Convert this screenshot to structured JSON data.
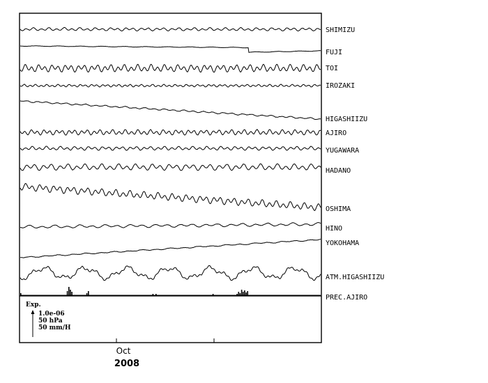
{
  "chart_data": {
    "type": "line",
    "title": "",
    "subtitle": "",
    "xlabel": "",
    "ylabel": "",
    "x_ticks": [
      "Oct"
    ],
    "x_year": "2008",
    "scale_box": {
      "title": "Exp.",
      "lines": [
        "1.0e-06",
        "50 hPa",
        "50 mm/H"
      ]
    },
    "series": [
      {
        "name": "SHIMIZU",
        "kind": "wiggle",
        "amp": 1.5,
        "period": 11,
        "trend": 0
      },
      {
        "name": "FUJI",
        "kind": "step",
        "levels": [
          0,
          2,
          3,
          10,
          9,
          7
        ],
        "step_at": 0.76
      },
      {
        "name": "TOI",
        "kind": "wiggle",
        "amp": 3.5,
        "period": 9.5,
        "trend": 0
      },
      {
        "name": "IROZAKI",
        "kind": "wiggle",
        "amp": 1.2,
        "period": 8,
        "trend": 0
      },
      {
        "name": "HIGASHIIZU",
        "kind": "wiggle",
        "amp": 0.8,
        "period": 14,
        "trend": 26
      },
      {
        "name": "AJIRO",
        "kind": "wiggle",
        "amp": 2.5,
        "period": 9,
        "trend": 0
      },
      {
        "name": "YUGAWARA",
        "kind": "wiggle",
        "amp": 1.8,
        "period": 10,
        "trend": 0
      },
      {
        "name": "HADANO",
        "kind": "wiggle",
        "amp": 3,
        "period": 12,
        "trend": 0
      },
      {
        "name": "OSHIMA",
        "kind": "wiggle",
        "amp": 3.5,
        "period": 10,
        "trend": 30
      },
      {
        "name": "HINO",
        "kind": "wiggle",
        "amp": 1.5,
        "period": 18,
        "trend": -4
      },
      {
        "name": "YOKOHAMA",
        "kind": "wiggle",
        "amp": 0.6,
        "period": 20,
        "trend": -26
      },
      {
        "name": "ATM.HIGASHIIZU",
        "kind": "pressure",
        "amp": 7,
        "period": 60
      },
      {
        "name": "PREC.AJIRO",
        "kind": "bars",
        "events": [
          {
            "x": 0.0,
            "h": 3
          },
          {
            "x": 0.155,
            "h": 6
          },
          {
            "x": 0.16,
            "h": 12
          },
          {
            "x": 0.165,
            "h": 8
          },
          {
            "x": 0.17,
            "h": 5
          },
          {
            "x": 0.22,
            "h": 3
          },
          {
            "x": 0.225,
            "h": 6
          },
          {
            "x": 0.44,
            "h": 2
          },
          {
            "x": 0.45,
            "h": 2
          },
          {
            "x": 0.64,
            "h": 2
          },
          {
            "x": 0.73,
            "h": 3
          },
          {
            "x": 0.72,
            "h": 2
          },
          {
            "x": 0.725,
            "h": 5
          },
          {
            "x": 0.735,
            "h": 8
          },
          {
            "x": 0.74,
            "h": 5
          },
          {
            "x": 0.745,
            "h": 7
          },
          {
            "x": 0.75,
            "h": 4
          },
          {
            "x": 0.755,
            "h": 6
          }
        ]
      }
    ],
    "grid": false
  }
}
